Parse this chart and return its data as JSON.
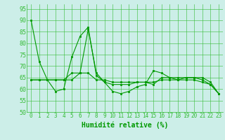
{
  "xlabel": "Humidité relative (%)",
  "bg_color": "#cceee8",
  "grid_color": "#33bb33",
  "line_color": "#009900",
  "marker_color": "#009900",
  "ylim": [
    50,
    97
  ],
  "xlim": [
    -0.5,
    23.5
  ],
  "yticks": [
    50,
    55,
    60,
    65,
    70,
    75,
    80,
    85,
    90,
    95
  ],
  "xticks": [
    0,
    1,
    2,
    3,
    4,
    5,
    6,
    7,
    8,
    9,
    10,
    11,
    12,
    13,
    14,
    15,
    16,
    17,
    18,
    19,
    20,
    21,
    22,
    23
  ],
  "series": [
    [
      90,
      72,
      64,
      59,
      60,
      74,
      83,
      87,
      66,
      63,
      59,
      58,
      59,
      61,
      62,
      68,
      67,
      65,
      65,
      65,
      65,
      65,
      63,
      58
    ],
    [
      64,
      64,
      64,
      64,
      64,
      67,
      67,
      86,
      67,
      63,
      62,
      62,
      62,
      63,
      63,
      62,
      65,
      65,
      64,
      65,
      65,
      64,
      62,
      58
    ],
    [
      64,
      64,
      64,
      64,
      64,
      64,
      67,
      67,
      64,
      64,
      63,
      63,
      63,
      63,
      63,
      63,
      64,
      64,
      64,
      64,
      64,
      63,
      62,
      58
    ]
  ],
  "xlabel_fontsize": 7,
  "xlabel_color": "#009900",
  "tick_fontsize": 5.5,
  "figsize": [
    3.2,
    2.0
  ],
  "dpi": 100
}
